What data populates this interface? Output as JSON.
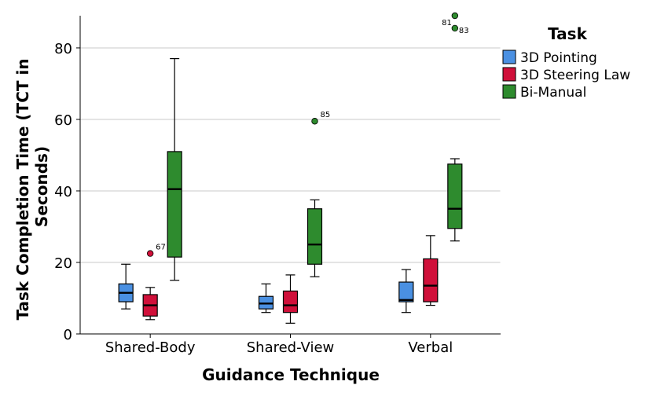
{
  "chart_data": {
    "type": "boxplot",
    "xlabel": "Guidance Technique",
    "ylabel": "Task Completion Time (TCT in Seconds)",
    "ylabel_lines": [
      "Task Completion Time (TCT in",
      "Seconds)"
    ],
    "ylim": [
      0,
      89
    ],
    "yticks": [
      0,
      20,
      40,
      60,
      80
    ],
    "grid": true,
    "legend_title": "Task",
    "legend_position": "top-right",
    "categories": [
      "Shared-Body",
      "Shared-View",
      "Verbal"
    ],
    "series": [
      {
        "name": "3D Pointing",
        "color": "#4a90e2",
        "boxes": [
          {
            "min": 7,
            "q1": 9,
            "median": 11.5,
            "q3": 14,
            "max": 19.5,
            "outliers": []
          },
          {
            "min": 6,
            "q1": 7,
            "median": 8.5,
            "q3": 10.5,
            "max": 14,
            "outliers": []
          },
          {
            "min": 6,
            "q1": 9,
            "median": 9.5,
            "q3": 14.5,
            "max": 18,
            "outliers": []
          }
        ]
      },
      {
        "name": "3D Steering Law",
        "color": "#d0103a",
        "boxes": [
          {
            "min": 4,
            "q1": 5,
            "median": 8,
            "q3": 11,
            "max": 13,
            "outliers": [
              {
                "value": 22.5,
                "label": "67"
              }
            ]
          },
          {
            "min": 3,
            "q1": 6,
            "median": 8,
            "q3": 12,
            "max": 16.5,
            "outliers": []
          },
          {
            "min": 8,
            "q1": 9,
            "median": 13.5,
            "q3": 21,
            "max": 27.5,
            "outliers": []
          }
        ]
      },
      {
        "name": "Bi-Manual",
        "color": "#2e8b2e",
        "boxes": [
          {
            "min": 15,
            "q1": 21.5,
            "median": 40.5,
            "q3": 51,
            "max": 77,
            "outliers": []
          },
          {
            "min": 16,
            "q1": 19.5,
            "median": 25,
            "q3": 35,
            "max": 37.5,
            "outliers": [
              {
                "value": 59.5,
                "label": "85"
              }
            ]
          },
          {
            "min": 26,
            "q1": 29.5,
            "median": 35,
            "q3": 47.5,
            "max": 49,
            "outliers": [
              {
                "value": 85.5,
                "label": "83"
              },
              {
                "value": 89,
                "label": "81"
              }
            ]
          }
        ]
      }
    ]
  }
}
